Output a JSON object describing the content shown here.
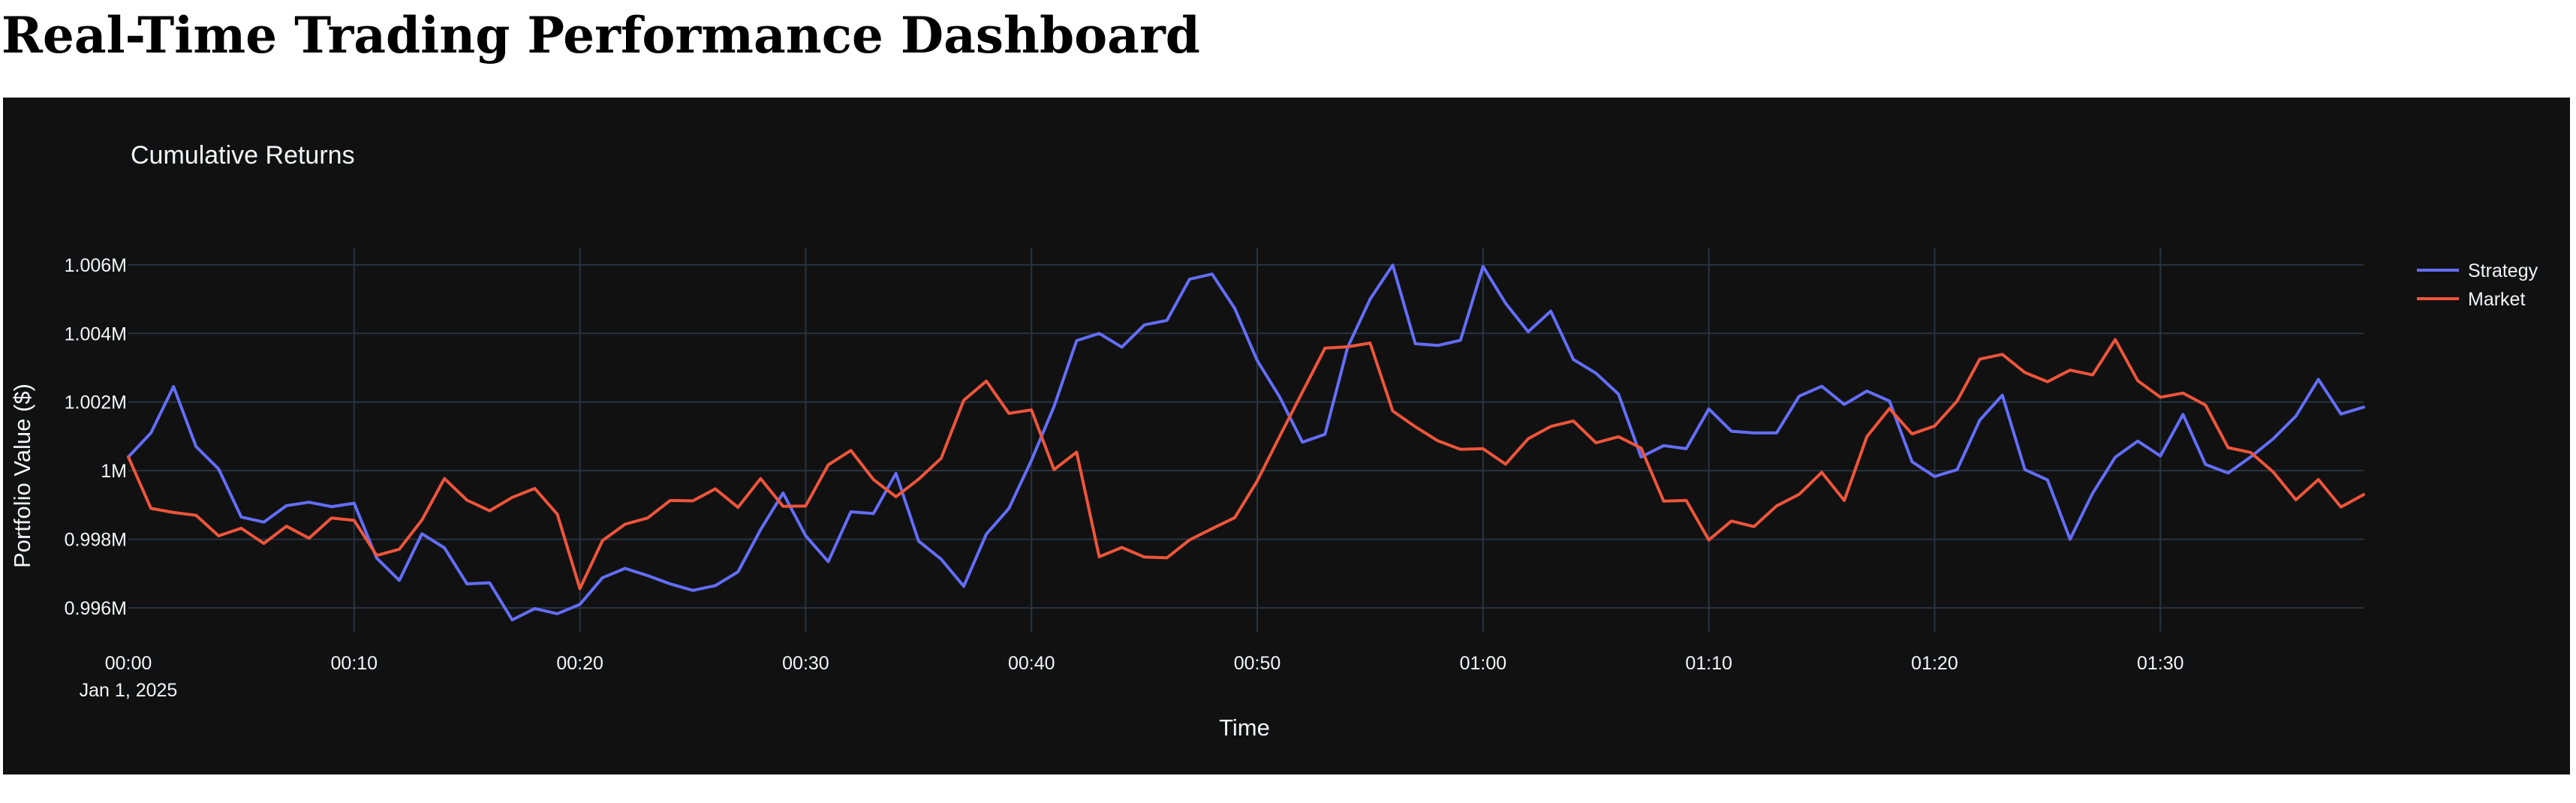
{
  "page": {
    "title": "Real-Time Trading Performance Dashboard"
  },
  "chart_data": {
    "type": "line",
    "title": "Cumulative Returns",
    "xlabel": "Time",
    "ylabel": "Portfolio Value ($)",
    "x_unit": "minutes",
    "x": [
      0,
      1,
      2,
      3,
      4,
      5,
      6,
      7,
      8,
      9,
      10,
      11,
      12,
      13,
      14,
      15,
      16,
      17,
      18,
      19,
      20,
      21,
      22,
      23,
      24,
      25,
      26,
      27,
      28,
      29,
      30,
      31,
      32,
      33,
      34,
      35,
      36,
      37,
      38,
      39,
      40,
      41,
      42,
      43,
      44,
      45,
      46,
      47,
      48,
      49,
      50,
      51,
      52,
      53,
      54,
      55,
      56,
      57,
      58,
      59,
      60,
      61,
      62,
      63,
      64,
      65,
      66,
      67,
      68,
      69,
      70,
      71,
      72,
      73,
      74,
      75,
      76,
      77,
      78,
      79,
      80,
      81,
      82,
      83,
      84,
      85,
      86,
      87,
      88,
      89,
      90,
      91,
      92,
      93,
      94,
      95,
      96,
      97,
      98,
      99
    ],
    "xlim": [
      0,
      99
    ],
    "ylim": [
      995300,
      1006500
    ],
    "x_ticks": [
      {
        "value": 0,
        "label": "00:00",
        "sublabel": "Jan 1, 2025"
      },
      {
        "value": 10,
        "label": "00:10"
      },
      {
        "value": 20,
        "label": "00:20"
      },
      {
        "value": 30,
        "label": "00:30"
      },
      {
        "value": 40,
        "label": "00:40"
      },
      {
        "value": 50,
        "label": "00:50"
      },
      {
        "value": 60,
        "label": "01:00"
      },
      {
        "value": 70,
        "label": "01:10"
      },
      {
        "value": 80,
        "label": "01:20"
      },
      {
        "value": 90,
        "label": "01:30"
      }
    ],
    "y_ticks": [
      {
        "value": 996000,
        "label": "0.996M"
      },
      {
        "value": 998000,
        "label": "0.998M"
      },
      {
        "value": 1000000,
        "label": "1M"
      },
      {
        "value": 1002000,
        "label": "1.002M"
      },
      {
        "value": 1004000,
        "label": "1.004M"
      },
      {
        "value": 1006000,
        "label": "1.006M"
      }
    ],
    "grid": true,
    "legend_position": "top-right",
    "background": "#111111",
    "grid_color": "#283442",
    "text_color": "#f2f5fa",
    "series": [
      {
        "name": "Strategy",
        "color": "#636efa",
        "values": [
          1000400,
          1001100,
          1002450,
          1000700,
          1000050,
          998650,
          998500,
          998980,
          999080,
          998950,
          999050,
          997450,
          996800,
          998160,
          997750,
          996700,
          996730,
          995650,
          995980,
          995830,
          996100,
          996880,
          997150,
          996940,
          996700,
          996510,
          996650,
          997050,
          998280,
          999350,
          998100,
          997350,
          998800,
          998750,
          999920,
          997950,
          997420,
          996630,
          998150,
          998900,
          1000300,
          1001870,
          1003790,
          1004000,
          1003600,
          1004250,
          1004380,
          1005580,
          1005730,
          1004730,
          1003210,
          1002140,
          1000830,
          1001060,
          1003590,
          1005000,
          1005990,
          1003700,
          1003650,
          1003800,
          1005950,
          1004880,
          1004050,
          1004650,
          1003240,
          1002840,
          1002230,
          1000400,
          1000730,
          1000640,
          1001800,
          1001150,
          1001100,
          1001100,
          1002170,
          1002460,
          1001930,
          1002320,
          1002030,
          1000260,
          999830,
          1000030,
          1001470,
          1002200,
          1000030,
          999730,
          998000,
          999340,
          1000390,
          1000860,
          1000430,
          1001640,
          1000180,
          999930,
          1000400,
          1000930,
          1001590,
          1002660,
          1001650,
          1001850
        ]
      },
      {
        "name": "Market",
        "color": "#ef553b",
        "values": [
          1000400,
          998900,
          998780,
          998700,
          998100,
          998320,
          997880,
          998380,
          998030,
          998620,
          998550,
          997530,
          997710,
          998560,
          999770,
          999140,
          998830,
          999220,
          999480,
          998730,
          996560,
          997960,
          998440,
          998620,
          999130,
          999120,
          999470,
          998930,
          999770,
          998960,
          998970,
          1000170,
          1000590,
          999740,
          999240,
          999750,
          1000360,
          1002050,
          1002610,
          1001670,
          1001770,
          1000030,
          1000540,
          997490,
          997760,
          997480,
          997460,
          997980,
          998310,
          998630,
          999700,
          1001010,
          1002290,
          1003570,
          1003610,
          1003720,
          1001740,
          1001280,
          1000870,
          1000620,
          1000640,
          1000190,
          1000930,
          1001290,
          1001450,
          1000810,
          1000990,
          1000660,
          999110,
          999130,
          997980,
          998530,
          998370,
          998970,
          999310,
          999950,
          999130,
          1000990,
          1001810,
          1001070,
          1001300,
          1002030,
          1003250,
          1003390,
          1002860,
          1002590,
          1002930,
          1002790,
          1003820,
          1002620,
          1002140,
          1002260,
          1001910,
          1000670,
          1000530,
          999960,
          999150,
          999740,
          998940,
          999300
        ]
      }
    ]
  }
}
